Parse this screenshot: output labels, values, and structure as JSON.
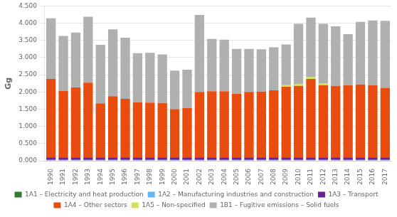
{
  "chart_data": {
    "type": "bar",
    "stacked": true,
    "grid": true,
    "legend": "bottom",
    "ylabel": "Gg",
    "categories": [
      "1990",
      "1991",
      "1992",
      "1993",
      "1994",
      "1995",
      "1996",
      "1997",
      "1998",
      "1999",
      "2000",
      "2001",
      "2002",
      "2003",
      "2004",
      "2005",
      "2006",
      "2007",
      "2008",
      "2009",
      "2010",
      "2011",
      "2012",
      "2013",
      "2014",
      "2015",
      "2016",
      "2017"
    ],
    "series": [
      {
        "name": "1A1 – Electricity and heat production",
        "color": "#2e7d32",
        "values": [
          0.02,
          0.02,
          0.02,
          0.02,
          0.02,
          0.02,
          0.02,
          0.02,
          0.02,
          0.02,
          0.02,
          0.02,
          0.02,
          0.02,
          0.02,
          0.02,
          0.02,
          0.02,
          0.02,
          0.02,
          0.02,
          0.02,
          0.02,
          0.02,
          0.02,
          0.02,
          0.02,
          0.02
        ]
      },
      {
        "name": "1A2 – Manufacturing industries and construction",
        "color": "#64b5f6",
        "values": [
          0.01,
          0.01,
          0.01,
          0.01,
          0.01,
          0.01,
          0.01,
          0.01,
          0.01,
          0.01,
          0.01,
          0.01,
          0.01,
          0.01,
          0.01,
          0.01,
          0.01,
          0.01,
          0.01,
          0.01,
          0.01,
          0.01,
          0.01,
          0.01,
          0.01,
          0.01,
          0.01,
          0.01
        ]
      },
      {
        "name": "1A3 – Transport",
        "color": "#6a1f96",
        "values": [
          0.07,
          0.07,
          0.07,
          0.07,
          0.07,
          0.07,
          0.07,
          0.07,
          0.07,
          0.07,
          0.07,
          0.07,
          0.07,
          0.07,
          0.07,
          0.07,
          0.07,
          0.07,
          0.07,
          0.07,
          0.07,
          0.07,
          0.07,
          0.07,
          0.07,
          0.07,
          0.07,
          0.07
        ]
      },
      {
        "name": "1A4 – Other sectors",
        "color": "#e84c0e",
        "values": [
          2.28,
          1.93,
          2.03,
          2.17,
          1.57,
          1.78,
          1.7,
          1.6,
          1.59,
          1.58,
          1.4,
          1.43,
          1.9,
          1.92,
          1.92,
          1.85,
          1.9,
          1.91,
          1.95,
          2.05,
          2.08,
          2.28,
          2.1,
          2.08,
          2.1,
          2.12,
          2.1,
          2.02
        ]
      },
      {
        "name": "1A5 – Non-specified",
        "color": "#d4e157",
        "values": [
          0.0,
          0.0,
          0.0,
          0.0,
          0.0,
          0.0,
          0.0,
          0.0,
          0.0,
          0.0,
          0.0,
          0.0,
          0.0,
          0.0,
          0.0,
          0.0,
          0.0,
          0.0,
          0.0,
          0.05,
          0.05,
          0.05,
          0.05,
          0.0,
          0.0,
          0.0,
          0.0,
          0.0
        ]
      },
      {
        "name": "1B1 – Fugitive emissions – Solid fuels",
        "color": "#b0b0b0",
        "values": [
          1.76,
          1.6,
          1.6,
          1.92,
          1.7,
          1.94,
          1.78,
          1.43,
          1.45,
          1.41,
          1.12,
          1.12,
          2.24,
          1.52,
          1.5,
          1.3,
          1.25,
          1.23,
          1.25,
          1.18,
          1.75,
          1.73,
          1.73,
          1.73,
          1.48,
          1.82,
          1.88,
          1.95
        ]
      }
    ],
    "ylim": [
      0.0,
      4.5
    ],
    "yticks": [
      {
        "value": 0.0,
        "label": "0.000"
      },
      {
        "value": 0.5,
        "label": "0.500"
      },
      {
        "value": 1.0,
        "label": "1.000"
      },
      {
        "value": 1.5,
        "label": "1.500"
      },
      {
        "value": 2.0,
        "label": "2.000"
      },
      {
        "value": 2.5,
        "label": "2.500"
      },
      {
        "value": 3.0,
        "label": "3.000"
      },
      {
        "value": 3.5,
        "label": "3.500"
      },
      {
        "value": 4.0,
        "label": "4.000"
      },
      {
        "value": 4.5,
        "label": "4.500"
      }
    ]
  }
}
